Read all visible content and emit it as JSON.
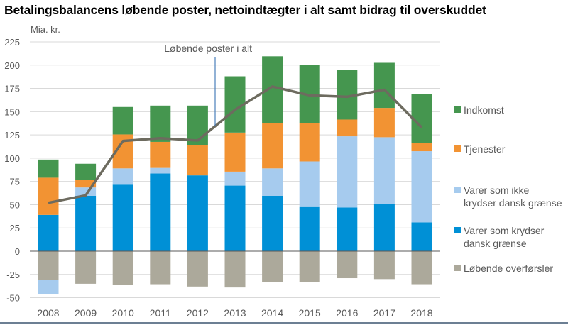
{
  "chart_data": {
    "type": "bar",
    "stacked": true,
    "title": "Betalingsbalancens løbende poster, nettoindtægter i alt samt bidrag til overskuddet",
    "ylabel": "Mia. kr.",
    "xlabel": "",
    "ylim": [
      -50,
      225
    ],
    "yticks": [
      225,
      200,
      175,
      150,
      125,
      100,
      75,
      50,
      25,
      0,
      -25,
      -50
    ],
    "grid": true,
    "legend_position": "right",
    "categories": [
      "2008",
      "2009",
      "2010",
      "2011",
      "2012",
      "2013",
      "2014",
      "2015",
      "2016",
      "2017",
      "2018"
    ],
    "series": [
      {
        "name": "Indkomst",
        "color": "#45964f",
        "values": [
          19.5,
          17,
          29.5,
          39,
          42.5,
          60.5,
          72,
          62.5,
          53.5,
          48.5,
          52.5
        ]
      },
      {
        "name": "Tjenester",
        "color": "#f29333",
        "values": [
          40,
          8.5,
          36.5,
          28,
          32.5,
          42,
          48.5,
          41.5,
          18,
          31.5,
          9
        ]
      },
      {
        "name": "Varer som ikke krydser dansk grænse",
        "color": "#a6cbee",
        "values": [
          -15,
          9,
          17.5,
          6,
          0,
          15,
          29.5,
          49,
          76.5,
          71.5,
          76.5
        ]
      },
      {
        "name": "Varer som krydser dansk grænse",
        "color": "#0090d6",
        "values": [
          39,
          59.5,
          71.5,
          83.5,
          81.5,
          70.5,
          59.5,
          47.5,
          47,
          51,
          31
        ]
      },
      {
        "name": "Løbende overførsler",
        "color": "#aca99b",
        "values": [
          -31,
          -35,
          -36.5,
          -35.5,
          -38,
          -39,
          -33.5,
          -33,
          -29,
          -30,
          -35.5
        ]
      }
    ],
    "line": {
      "name": "Løbende poster i alt",
      "color": "#6d6b5f",
      "values": [
        52,
        60,
        118.5,
        121.5,
        119,
        152,
        177,
        167.5,
        166,
        173.5,
        133
      ]
    },
    "legend": [
      {
        "lines": [
          "Indkomst"
        ]
      },
      {
        "lines": [
          "Tjenester"
        ]
      },
      {
        "lines": [
          "Varer som ikke",
          "krydser dansk grænse"
        ]
      },
      {
        "lines": [
          "Varer som krydser",
          "dansk grænse"
        ]
      },
      {
        "lines": [
          "Løbende overførsler"
        ]
      }
    ]
  }
}
